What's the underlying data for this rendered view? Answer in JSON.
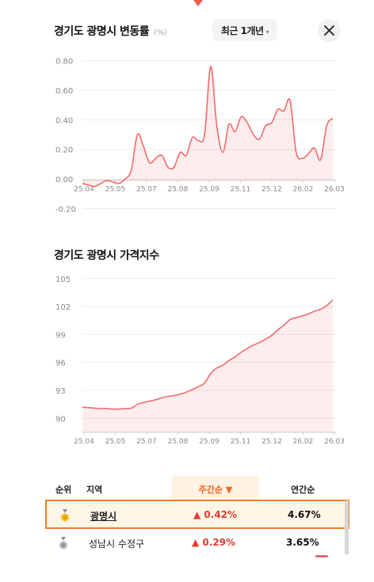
{
  "header": {
    "title": "경기도 광명시 변동률",
    "unit": "(%)",
    "period_label": "최근 1개년",
    "period_chevron": "▾"
  },
  "chart_data": [
    {
      "type": "area",
      "title": "경기도 광명시 변동률",
      "ylabel": "(%)",
      "x_ticks": [
        "25.04",
        "25.05",
        "25.07",
        "25.08",
        "25.09",
        "25.11",
        "25.12",
        "26.02",
        "26.03"
      ],
      "y_ticks": [
        "0.80",
        "0.60",
        "0.40",
        "0.20",
        "0.00",
        "-0.20"
      ],
      "ylim": [
        -0.2,
        0.8
      ],
      "grid": true,
      "color": "#f26b6b",
      "values": [
        -0.03,
        -0.04,
        -0.05,
        -0.03,
        -0.01,
        -0.02,
        -0.03,
        0.0,
        0.06,
        0.3,
        0.22,
        0.11,
        0.14,
        0.16,
        0.08,
        0.08,
        0.18,
        0.16,
        0.28,
        0.26,
        0.3,
        0.76,
        0.36,
        0.18,
        0.37,
        0.32,
        0.42,
        0.38,
        0.3,
        0.27,
        0.36,
        0.38,
        0.47,
        0.46,
        0.53,
        0.18,
        0.14,
        0.17,
        0.21,
        0.13,
        0.36,
        0.41
      ]
    },
    {
      "type": "area",
      "title": "경기도 광명시 가격지수",
      "x_ticks": [
        "25.04",
        "25.05",
        "25.07",
        "25.08",
        "25.09",
        "25.11",
        "25.12",
        "26.02",
        "26.03"
      ],
      "y_ticks": [
        "105",
        "102",
        "99",
        "96",
        "93",
        "90"
      ],
      "ylim": [
        88.5,
        106
      ],
      "grid": true,
      "color": "#f26b6b",
      "values": [
        91.2,
        91.15,
        91.1,
        91.05,
        91.05,
        91.0,
        91.0,
        91.05,
        91.1,
        91.5,
        91.7,
        91.85,
        92.0,
        92.2,
        92.35,
        92.45,
        92.6,
        92.8,
        93.1,
        93.4,
        93.8,
        94.8,
        95.4,
        95.7,
        96.2,
        96.6,
        97.1,
        97.5,
        97.85,
        98.15,
        98.5,
        98.9,
        99.5,
        100.0,
        100.6,
        100.8,
        101.0,
        101.2,
        101.5,
        101.7,
        102.1,
        102.7
      ]
    }
  ],
  "chart2": {
    "title": "경기도 광명시 가격지수"
  },
  "table": {
    "headers": {
      "rank": "순위",
      "region": "지역",
      "weekly": "주간순 ▼",
      "yearly": "연간순"
    },
    "rows": [
      {
        "region": "광명시",
        "weekly": "▲ 0.42%",
        "yearly": "4.67%",
        "medal": "gold"
      },
      {
        "region": "성남시 수정구",
        "weekly": "▲ 0.29%",
        "yearly": "3.65%",
        "medal": "silver"
      }
    ]
  }
}
